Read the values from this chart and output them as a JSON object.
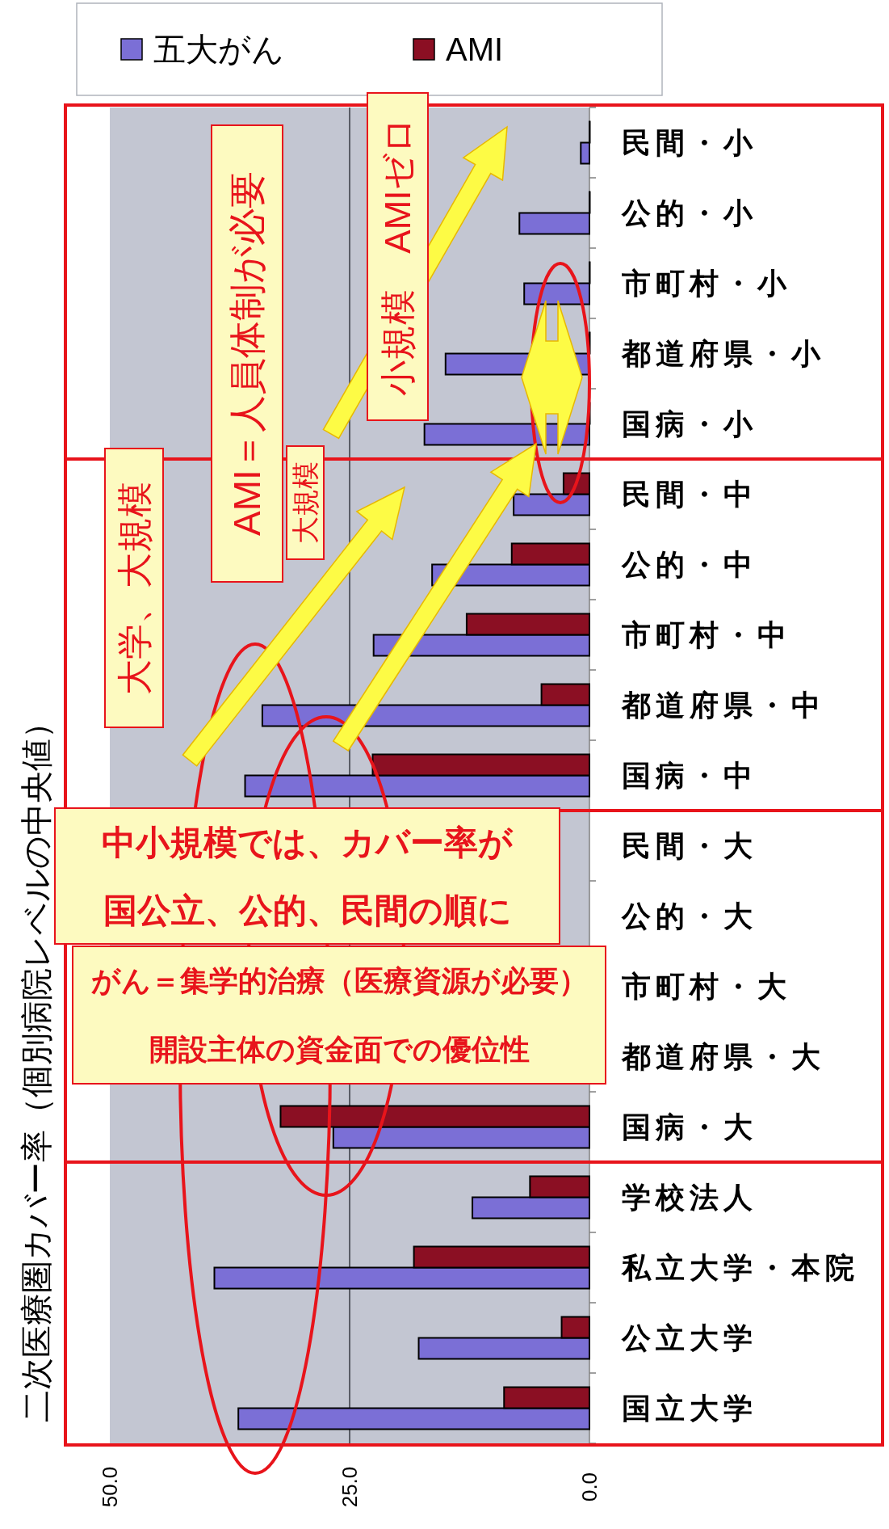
{
  "chart_data": {
    "type": "bar",
    "orientation": "horizontal",
    "title": "二次医療圏カバー率（個別病院レベルの中央値）",
    "categories": [
      "民間・小",
      "公的・小",
      "市町村・小",
      "都道府県・小",
      "国病・小",
      "民間・中",
      "公的・中",
      "市町村・中",
      "都道府県・中",
      "国病・中",
      "民間・大",
      "公的・大",
      "市町村・大",
      "都道府県・大",
      "国病・大",
      "学校法人",
      "私立大学・本院",
      "公立大学",
      "国立大学"
    ],
    "series": [
      {
        "name": "五大がん",
        "color": "#7b6fd6",
        "values": [
          0.9,
          7.3,
          6.8,
          15.0,
          17.2,
          7.9,
          16.4,
          22.5,
          34.1,
          35.9,
          null,
          null,
          null,
          null,
          26.7,
          12.2,
          39.1,
          17.8,
          36.6
        ]
      },
      {
        "name": "AMI",
        "color": "#8b0f23",
        "values": [
          0,
          0,
          0,
          0,
          0,
          2.7,
          8.1,
          12.8,
          5.0,
          22.6,
          null,
          null,
          null,
          null,
          32.2,
          6.2,
          18.3,
          2.9,
          8.9
        ]
      }
    ],
    "xlim": [
      50,
      0
    ],
    "xticks": [
      {
        "value": 0,
        "label": "0.0"
      },
      {
        "value": 25,
        "label": "25.0"
      },
      {
        "value": 50,
        "label": "50.0"
      }
    ],
    "ref_lines": [
      {
        "axis": "x",
        "value": 25,
        "color": "#5a5d66"
      }
    ],
    "legend": "top",
    "annotations": [
      "大学、大規模",
      "AMI＝人員体制が必要",
      "大規模",
      "小規模　AMIゼロ",
      "中小規模では、カバー率が",
      "国公立、公的、民間の順に",
      "がん＝集学的治療（医療資源が必要）",
      "開設主体の資金面での優位性"
    ]
  }
}
